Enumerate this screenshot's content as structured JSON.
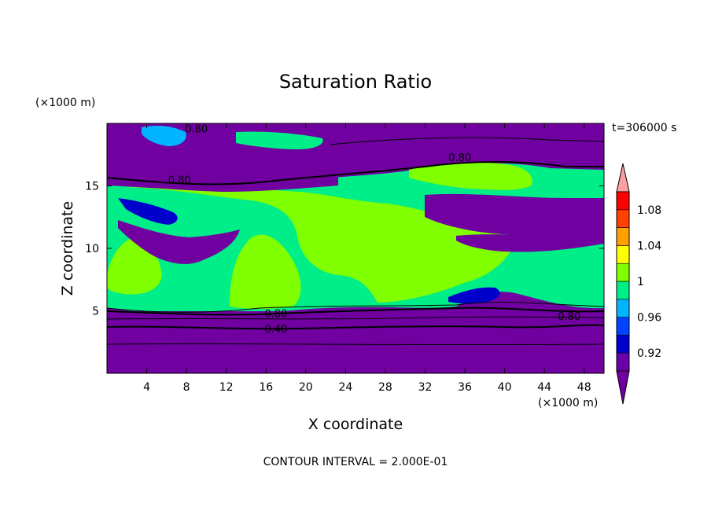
{
  "chart_data": {
    "type": "heatmap",
    "title": "Saturation Ratio",
    "xlabel": "X coordinate",
    "ylabel": "Z coordinate",
    "x_unit": "(×1000 m)",
    "y_unit": "(×1000 m)",
    "time_label": "t=306000 s",
    "footer": "CONTOUR INTERVAL = 2.000E-01",
    "xlim": [
      0,
      50
    ],
    "ylim": [
      0,
      20
    ],
    "x_ticks": [
      4,
      8,
      12,
      16,
      20,
      24,
      28,
      32,
      36,
      40,
      44,
      48
    ],
    "y_ticks": [
      5,
      10,
      15
    ],
    "contour_labels": [
      {
        "text": "0.80",
        "x": 9.0,
        "z": 19.6
      },
      {
        "text": "0.80",
        "x": 35.5,
        "z": 17.3
      },
      {
        "text": "0.80",
        "x": 7.3,
        "z": 15.5
      },
      {
        "text": "0.80",
        "x": 17.0,
        "z": 4.8
      },
      {
        "text": "0.40",
        "x": 17.0,
        "z": 3.6
      },
      {
        "text": "0.80",
        "x": 46.5,
        "z": 4.6
      }
    ],
    "colorbar": {
      "tick_labels": [
        "1.08",
        "1.04",
        "1",
        "0.96",
        "0.92"
      ],
      "levels": [
        0.9,
        0.92,
        0.94,
        0.96,
        0.98,
        1.0,
        1.02,
        1.04,
        1.06,
        1.08,
        1.1
      ],
      "colors": [
        "#6a00a8",
        "#0000cc",
        "#0044ff",
        "#00b4ff",
        "#00ee88",
        "#80ff00",
        "#ffff00",
        "#ffa000",
        "#ff4000",
        "#ff0000",
        "#ffa0a0"
      ],
      "under_color": "#7000a0",
      "over_color": "#ffa0a0"
    },
    "colors": {
      "purple": "#7000a0",
      "teal": "#00ee88",
      "lime": "#80ff00",
      "blue": "#0000cc",
      "cyan": "#00b4ff"
    }
  }
}
